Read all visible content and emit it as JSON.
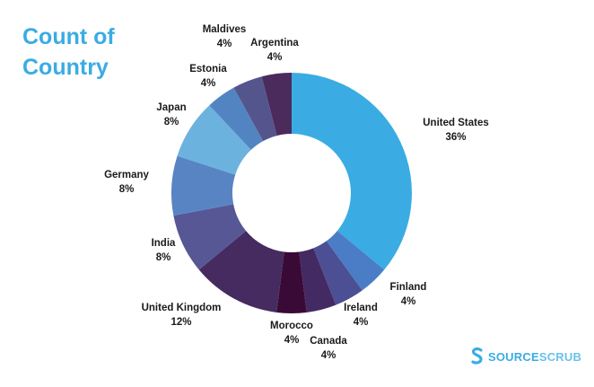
{
  "title_lines": [
    "Count of",
    "Country"
  ],
  "brand": {
    "part1": "SOURCE",
    "part2": "SCRUB"
  },
  "chart_data": {
    "type": "pie",
    "variant": "donut",
    "title": "Count of Country",
    "slices": [
      {
        "label": "United States",
        "value": 36,
        "display": "36%",
        "color": "#3AACE3"
      },
      {
        "label": "Finland",
        "value": 4,
        "display": "4%",
        "color": "#4A7DC6"
      },
      {
        "label": "Ireland",
        "value": 4,
        "display": "4%",
        "color": "#4C4F93"
      },
      {
        "label": "Canada",
        "value": 4,
        "display": "4%",
        "color": "#442A62"
      },
      {
        "label": "Morocco",
        "value": 4,
        "display": "4%",
        "color": "#3A0A37"
      },
      {
        "label": "United Kingdom",
        "value": 12,
        "display": "12%",
        "color": "#452B5F"
      },
      {
        "label": "India",
        "value": 8,
        "display": "8%",
        "color": "#575796"
      },
      {
        "label": "Germany",
        "value": 8,
        "display": "8%",
        "color": "#5984C4"
      },
      {
        "label": "Japan",
        "value": 8,
        "display": "8%",
        "color": "#6BB2DE"
      },
      {
        "label": "Estonia",
        "value": 4,
        "display": "4%",
        "color": "#5384C2"
      },
      {
        "label": "Maldives",
        "value": 4,
        "display": "4%",
        "color": "#55558D"
      },
      {
        "label": "Argentina",
        "value": 4,
        "display": "4%",
        "color": "#4B2A5C"
      }
    ]
  }
}
